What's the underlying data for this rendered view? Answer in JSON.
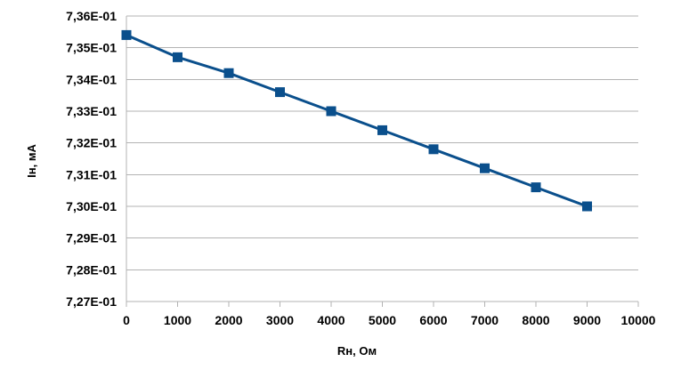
{
  "chart_data": {
    "type": "line",
    "title": "",
    "xlabel": "Rн, Ом",
    "ylabel": "Iн, мА",
    "xlim": [
      0,
      10000
    ],
    "ylim": [
      0.727,
      0.736
    ],
    "x_ticks": [
      "0",
      "1000",
      "2000",
      "3000",
      "4000",
      "5000",
      "6000",
      "7000",
      "8000",
      "9000",
      "10000"
    ],
    "y_ticks": [
      "7,36E-01",
      "7,35E-01",
      "7,34E-01",
      "7,33E-01",
      "7,32E-01",
      "7,31E-01",
      "7,30E-01",
      "7,29E-01",
      "7,28E-01",
      "7,27E-01"
    ],
    "grid": "horizontal",
    "legend": "none",
    "series": [
      {
        "color": "#0a4f8c",
        "marker": "square",
        "x": [
          0,
          1000,
          2000,
          3000,
          4000,
          5000,
          6000,
          7000,
          8000,
          9000
        ],
        "y": [
          0.7354,
          0.7347,
          0.7342,
          0.7336,
          0.733,
          0.7324,
          0.7318,
          0.7312,
          0.7306,
          0.73
        ]
      }
    ]
  }
}
